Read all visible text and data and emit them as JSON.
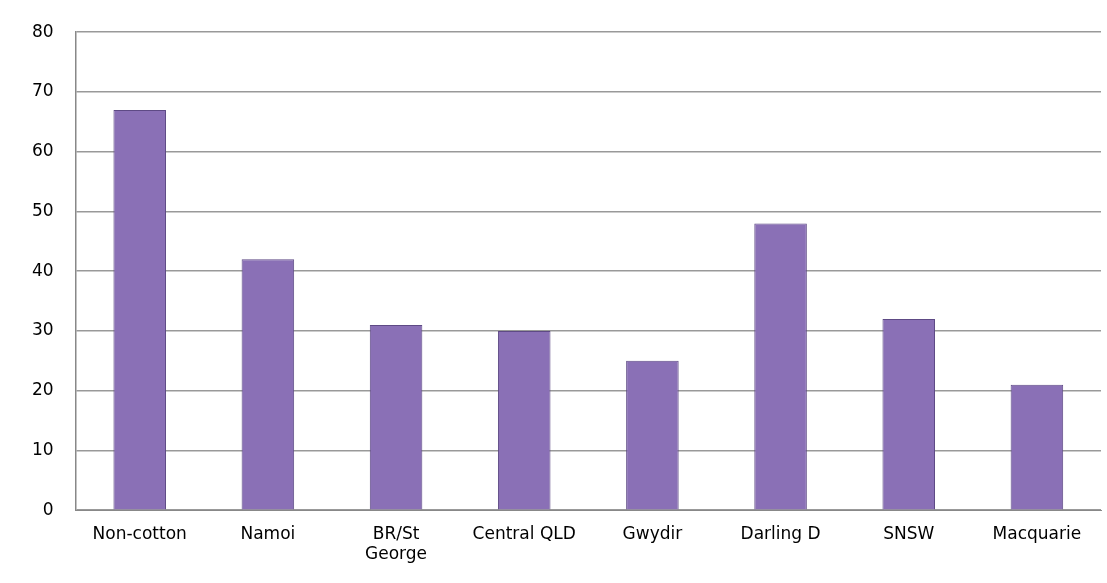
{
  "chart_data": {
    "type": "bar",
    "categories": [
      "Non-cotton",
      "Namoi",
      "BR/St George",
      "Central QLD",
      "Gwydir",
      "Darling D",
      "SNSW",
      "Macquarie"
    ],
    "values": [
      67,
      42,
      31,
      30,
      25,
      48,
      32,
      21
    ],
    "color": "#8a70b6",
    "ylim": [
      0,
      80
    ],
    "yticks": [
      0,
      10,
      20,
      30,
      40,
      50,
      60,
      70,
      80
    ],
    "grid": "y",
    "legend": false
  }
}
